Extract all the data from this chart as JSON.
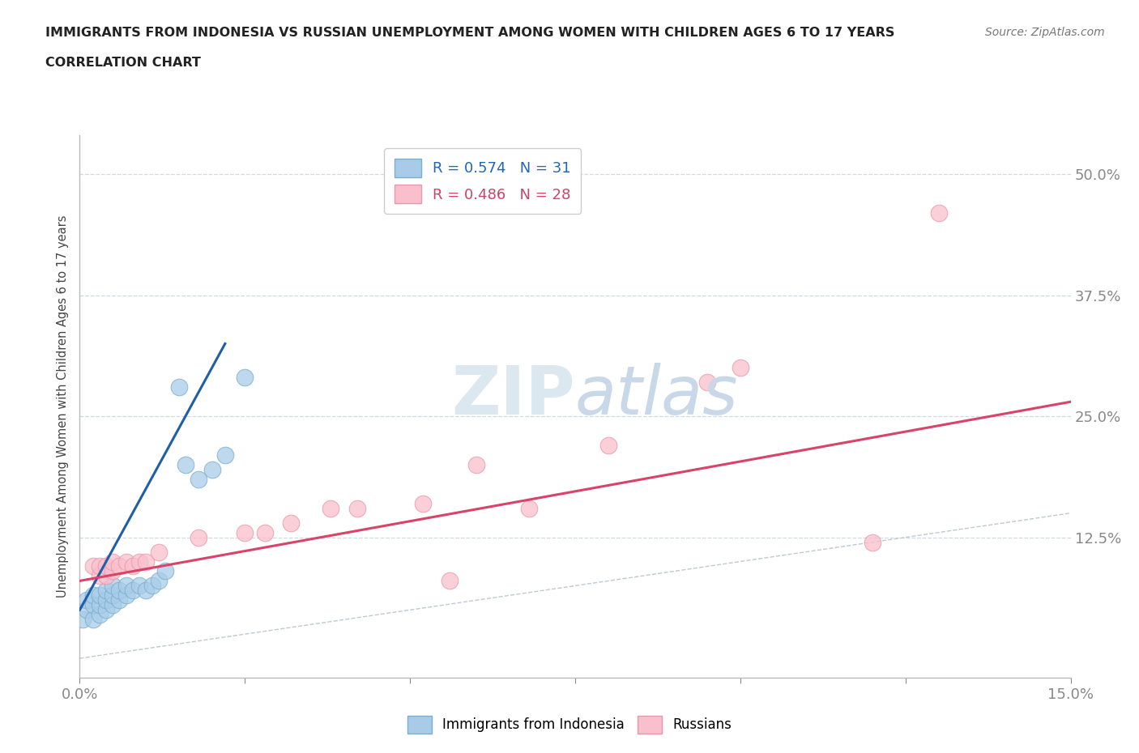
{
  "title": "IMMIGRANTS FROM INDONESIA VS RUSSIAN UNEMPLOYMENT AMONG WOMEN WITH CHILDREN AGES 6 TO 17 YEARS",
  "subtitle": "CORRELATION CHART",
  "source": "Source: ZipAtlas.com",
  "ylabel": "Unemployment Among Women with Children Ages 6 to 17 years",
  "xlim": [
    0.0,
    0.15
  ],
  "ylim": [
    -0.02,
    0.54
  ],
  "yticks": [
    0.0,
    0.125,
    0.25,
    0.375,
    0.5
  ],
  "ytick_labels": [
    "",
    "12.5%",
    "25.0%",
    "37.5%",
    "50.0%"
  ],
  "xtick_vals": [
    0.0,
    0.025,
    0.05,
    0.075,
    0.1,
    0.125,
    0.15
  ],
  "legend_blue_R": "0.574",
  "legend_blue_N": "31",
  "legend_pink_R": "0.486",
  "legend_pink_N": "28",
  "blue_scatter_x": [
    0.0005,
    0.001,
    0.001,
    0.002,
    0.002,
    0.002,
    0.003,
    0.003,
    0.003,
    0.004,
    0.004,
    0.004,
    0.005,
    0.005,
    0.005,
    0.006,
    0.006,
    0.007,
    0.007,
    0.008,
    0.009,
    0.01,
    0.011,
    0.012,
    0.013,
    0.015,
    0.016,
    0.018,
    0.02,
    0.022,
    0.025
  ],
  "blue_scatter_y": [
    0.04,
    0.05,
    0.06,
    0.04,
    0.055,
    0.065,
    0.045,
    0.055,
    0.065,
    0.05,
    0.06,
    0.07,
    0.055,
    0.065,
    0.075,
    0.06,
    0.07,
    0.065,
    0.075,
    0.07,
    0.075,
    0.07,
    0.075,
    0.08,
    0.09,
    0.28,
    0.2,
    0.185,
    0.195,
    0.21,
    0.29
  ],
  "pink_scatter_x": [
    0.002,
    0.003,
    0.003,
    0.004,
    0.004,
    0.005,
    0.005,
    0.006,
    0.007,
    0.008,
    0.009,
    0.01,
    0.012,
    0.018,
    0.025,
    0.028,
    0.032,
    0.038,
    0.042,
    0.052,
    0.056,
    0.06,
    0.068,
    0.08,
    0.095,
    0.1,
    0.12,
    0.13
  ],
  "pink_scatter_y": [
    0.095,
    0.085,
    0.095,
    0.085,
    0.095,
    0.09,
    0.1,
    0.095,
    0.1,
    0.095,
    0.1,
    0.1,
    0.11,
    0.125,
    0.13,
    0.13,
    0.14,
    0.155,
    0.155,
    0.16,
    0.08,
    0.2,
    0.155,
    0.22,
    0.285,
    0.3,
    0.12,
    0.46
  ],
  "blue_line_x": [
    0.0,
    0.022
  ],
  "blue_line_y": [
    0.05,
    0.325
  ],
  "pink_line_x": [
    0.0,
    0.15
  ],
  "pink_line_y": [
    0.08,
    0.265
  ],
  "diag_line_x": [
    0.0,
    0.15
  ],
  "diag_line_y": [
    0.0,
    0.15
  ],
  "blue_scatter_color": "#a8cce8",
  "blue_scatter_edge": "#7aaed0",
  "pink_scatter_color": "#f9bfcc",
  "pink_scatter_edge": "#e898aa",
  "blue_line_color": "#1e5fa8",
  "pink_line_color": "#d9436a",
  "diagonal_color": "#c0c8d0",
  "watermark_color": "#dce8f0",
  "grid_color": "#d0d8e0",
  "bg_color": "#ffffff",
  "title_color": "#222222",
  "axis_label_color": "#444444",
  "tick_color": "#5588cc",
  "legend_text_blue": "#2266bb",
  "legend_text_pink": "#cc4466"
}
